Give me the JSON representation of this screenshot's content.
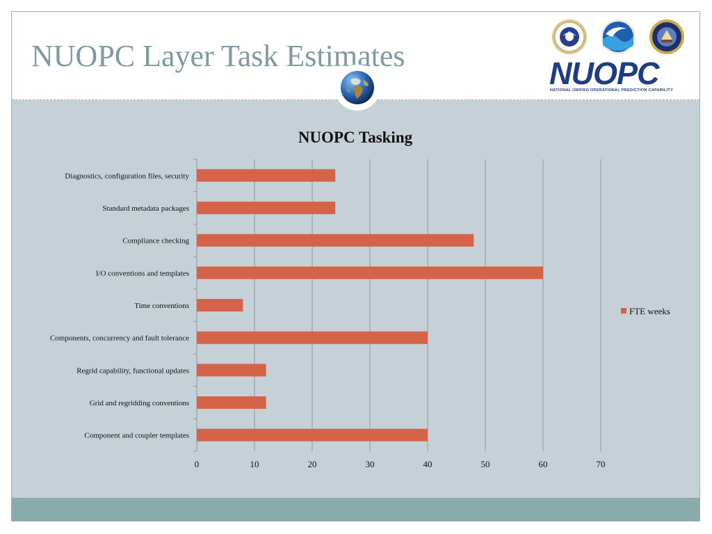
{
  "slide": {
    "title": "NUOPC Layer Task Estimates"
  },
  "branding": {
    "wordmark": "NUOPC",
    "tagline": "NATIONAL UNIFIED OPERATIONAL PREDICTION CAPABILITY",
    "icons": [
      "air-force-seal-icon",
      "noaa-seal-icon",
      "navy-seal-icon",
      "globe-icon"
    ]
  },
  "colors": {
    "bar": "#d4634a",
    "content_bg": "#c5d1d7",
    "footer": "#8aabab",
    "title": "#7d9aa0",
    "wordmark": "#1f3e82"
  },
  "chart_data": {
    "type": "bar",
    "orientation": "horizontal",
    "title": "NUOPC Tasking",
    "categories": [
      "Diagnostics, configuration files, security",
      "Standard metadata packages",
      "Compliance checking",
      "I/O conventions and templates",
      "Time conventions",
      "Components, concurrency and fault tolerance",
      "Regrid capability, functional updates",
      "Grid and regridding conventions",
      "Component and coupler templates"
    ],
    "series": [
      {
        "name": "FTE weeks",
        "values": [
          24,
          24,
          48,
          60,
          8,
          40,
          12,
          12,
          40
        ]
      }
    ],
    "xlim": [
      0,
      70
    ],
    "xticks": [
      0,
      10,
      20,
      30,
      40,
      50,
      60,
      70
    ],
    "grid": true,
    "legend": "right"
  }
}
